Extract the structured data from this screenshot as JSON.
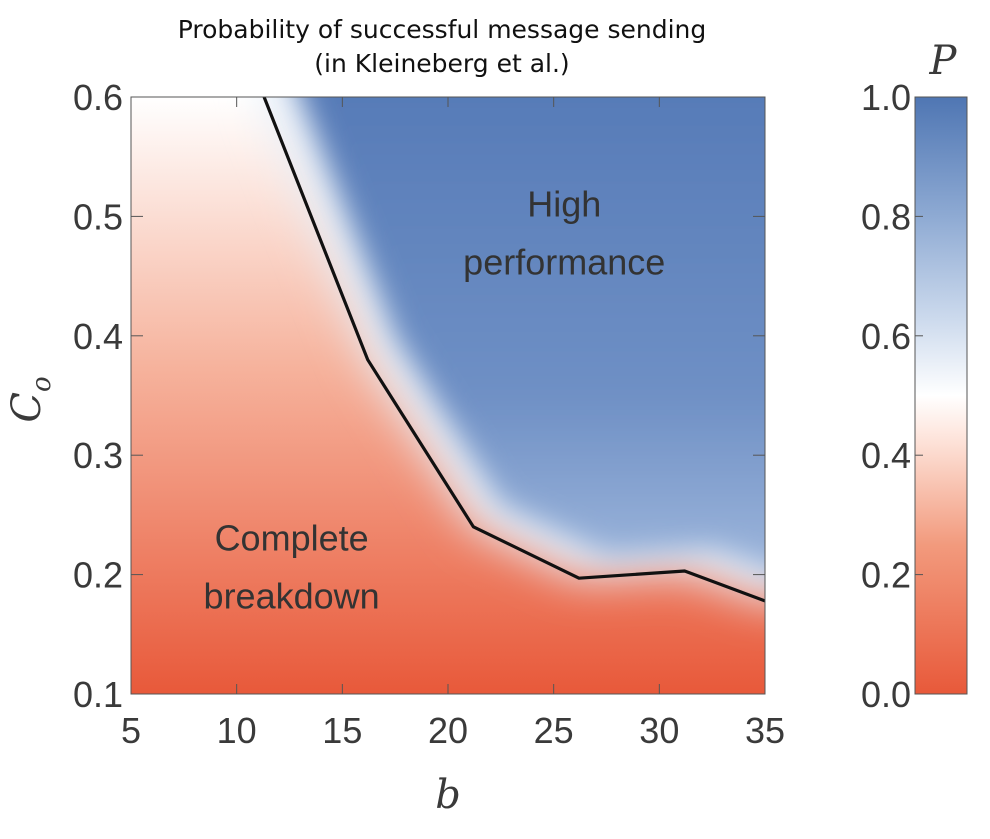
{
  "chart_data": {
    "type": "heatmap",
    "title_lines": [
      "Probability of successful message sending",
      "(in Kleineberg et al.)"
    ],
    "xlabel": "b",
    "ylabel": "C",
    "ylabel_subscript": "o",
    "xlim": [
      5,
      35
    ],
    "ylim": [
      0.1,
      0.6
    ],
    "x_ticks": [
      5,
      10,
      15,
      20,
      25,
      30,
      35
    ],
    "x_tick_labels": [
      "5",
      "10",
      "15",
      "20",
      "25",
      "30",
      "35"
    ],
    "y_ticks": [
      0.1,
      0.2,
      0.3,
      0.4,
      0.5,
      0.6
    ],
    "y_tick_labels": [
      "0.1",
      "0.2",
      "0.3",
      "0.4",
      "0.5",
      "0.6"
    ],
    "colorbar": {
      "label": "P",
      "range": [
        0.0,
        1.0
      ],
      "ticks": [
        0.0,
        0.2,
        0.4,
        0.6,
        0.8,
        1.0
      ],
      "tick_labels": [
        "0.0",
        "0.2",
        "0.4",
        "0.6",
        "0.8",
        "1.0"
      ],
      "low_color": "#e8593a",
      "mid_color": "#ffffff",
      "high_color": "#4f76b3"
    },
    "boundary_line": {
      "x": [
        11.3,
        16.2,
        21.2,
        26.2,
        31.2,
        35
      ],
      "y": [
        0.6,
        0.38,
        0.24,
        0.197,
        0.203,
        0.178
      ],
      "color": "#111111"
    },
    "annotations": [
      {
        "lines": [
          "High",
          "performance"
        ],
        "x": 25.5,
        "y": 0.5
      },
      {
        "lines": [
          "Complete",
          "breakdown"
        ],
        "x": 12.6,
        "y": 0.22
      }
    ]
  }
}
